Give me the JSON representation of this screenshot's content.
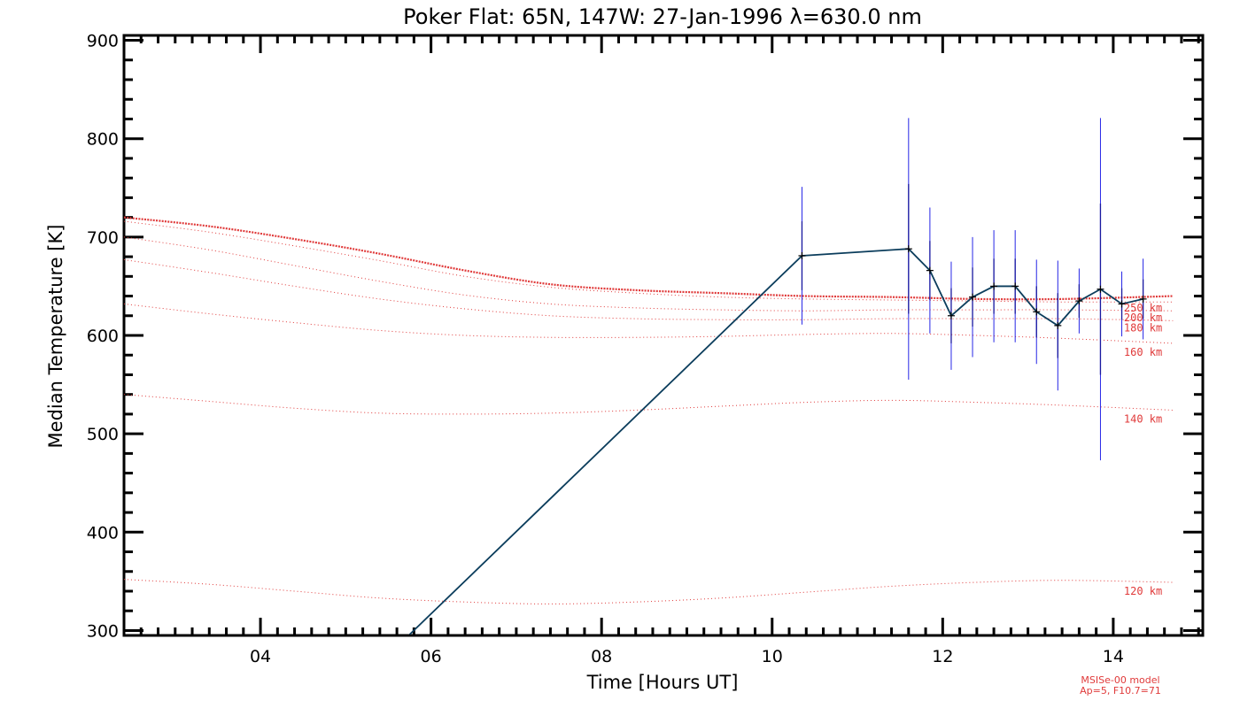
{
  "chart_data": {
    "type": "line",
    "title": "Poker Flat: 65N, 147W: 27-Jan-1996 λ=630.0 nm",
    "xlabel": "Time [Hours UT]",
    "ylabel": "Median Temperature [K]",
    "xlim": [
      2.4,
      15.05
    ],
    "ylim": [
      295,
      905
    ],
    "x_ticks": [
      4,
      6,
      8,
      10,
      12,
      14
    ],
    "x_tick_labels": [
      "04",
      "06",
      "08",
      "10",
      "12",
      "14"
    ],
    "y_ticks": [
      300,
      400,
      500,
      600,
      700,
      800,
      900
    ],
    "y_tick_labels": [
      "300",
      "400",
      "500",
      "600",
      "700",
      "800",
      "900"
    ],
    "grid": false,
    "series": [
      {
        "kind": "measured",
        "color": "#0b3d5c",
        "errorbar_color": "#2626e6",
        "points": [
          {
            "x": 5.75,
            "y": 296
          },
          {
            "x": 10.35,
            "y": 681,
            "err_in": 35,
            "err_out": 70
          },
          {
            "x": 11.6,
            "y": 688,
            "err_in": 66,
            "err_out": 133
          },
          {
            "x": 11.85,
            "y": 666,
            "err_in": 30,
            "err_out": 64
          },
          {
            "x": 12.1,
            "y": 620,
            "err_in": 28,
            "err_out": 55
          },
          {
            "x": 12.35,
            "y": 639,
            "err_in": 30,
            "err_out": 61
          },
          {
            "x": 12.6,
            "y": 650,
            "err_in": 28,
            "err_out": 57
          },
          {
            "x": 12.85,
            "y": 650,
            "err_in": 28,
            "err_out": 57
          },
          {
            "x": 13.1,
            "y": 624,
            "err_in": 26,
            "err_out": 53
          },
          {
            "x": 13.35,
            "y": 610,
            "err_in": 33,
            "err_out": 66
          },
          {
            "x": 13.6,
            "y": 635,
            "err_in": 17,
            "err_out": 33
          },
          {
            "x": 13.85,
            "y": 647,
            "err_in": 87,
            "err_out": 174
          },
          {
            "x": 14.1,
            "y": 632,
            "err_in": 16,
            "err_out": 33
          },
          {
            "x": 14.35,
            "y": 637,
            "err_in": 20,
            "err_out": 41
          }
        ]
      }
    ],
    "model_curves": {
      "color": "#e03a3a",
      "x": [
        2.4,
        3.4,
        4.4,
        5.4,
        6.4,
        7.4,
        8.4,
        9.4,
        10.4,
        11.4,
        12.4,
        13.4,
        14.7
      ],
      "curves": [
        {
          "label": "120 km",
          "y": [
            352,
            347,
            340,
            333,
            329,
            327,
            329,
            333,
            339,
            345,
            349,
            351,
            349
          ]
        },
        {
          "label": "140 km",
          "y": [
            540,
            533,
            526,
            521,
            520,
            521,
            524,
            528,
            532,
            534,
            532,
            529,
            524
          ]
        },
        {
          "label": "160 km",
          "y": [
            632,
            622,
            613,
            605,
            600,
            598,
            598,
            599,
            601,
            602,
            600,
            597,
            592
          ]
        },
        {
          "label": "180 km",
          "y": [
            677,
            664,
            650,
            637,
            627,
            620,
            617,
            616,
            616,
            617,
            617,
            617,
            615
          ]
        },
        {
          "label": "200 km",
          "y": [
            700,
            687,
            671,
            655,
            641,
            632,
            628,
            626,
            625,
            626,
            626,
            626,
            625
          ]
        },
        {
          "label": "250 km",
          "y": [
            716,
            705,
            691,
            676,
            660,
            649,
            643,
            639,
            637,
            636,
            635,
            634,
            634
          ]
        },
        {
          "label": "",
          "marker": true,
          "y": [
            720,
            711,
            698,
            683,
            666,
            652,
            646,
            643,
            640,
            639,
            637,
            637,
            640
          ]
        }
      ]
    },
    "annotations": [
      "MSISe-00 model",
      "Ap=5, F10.7=71"
    ]
  }
}
